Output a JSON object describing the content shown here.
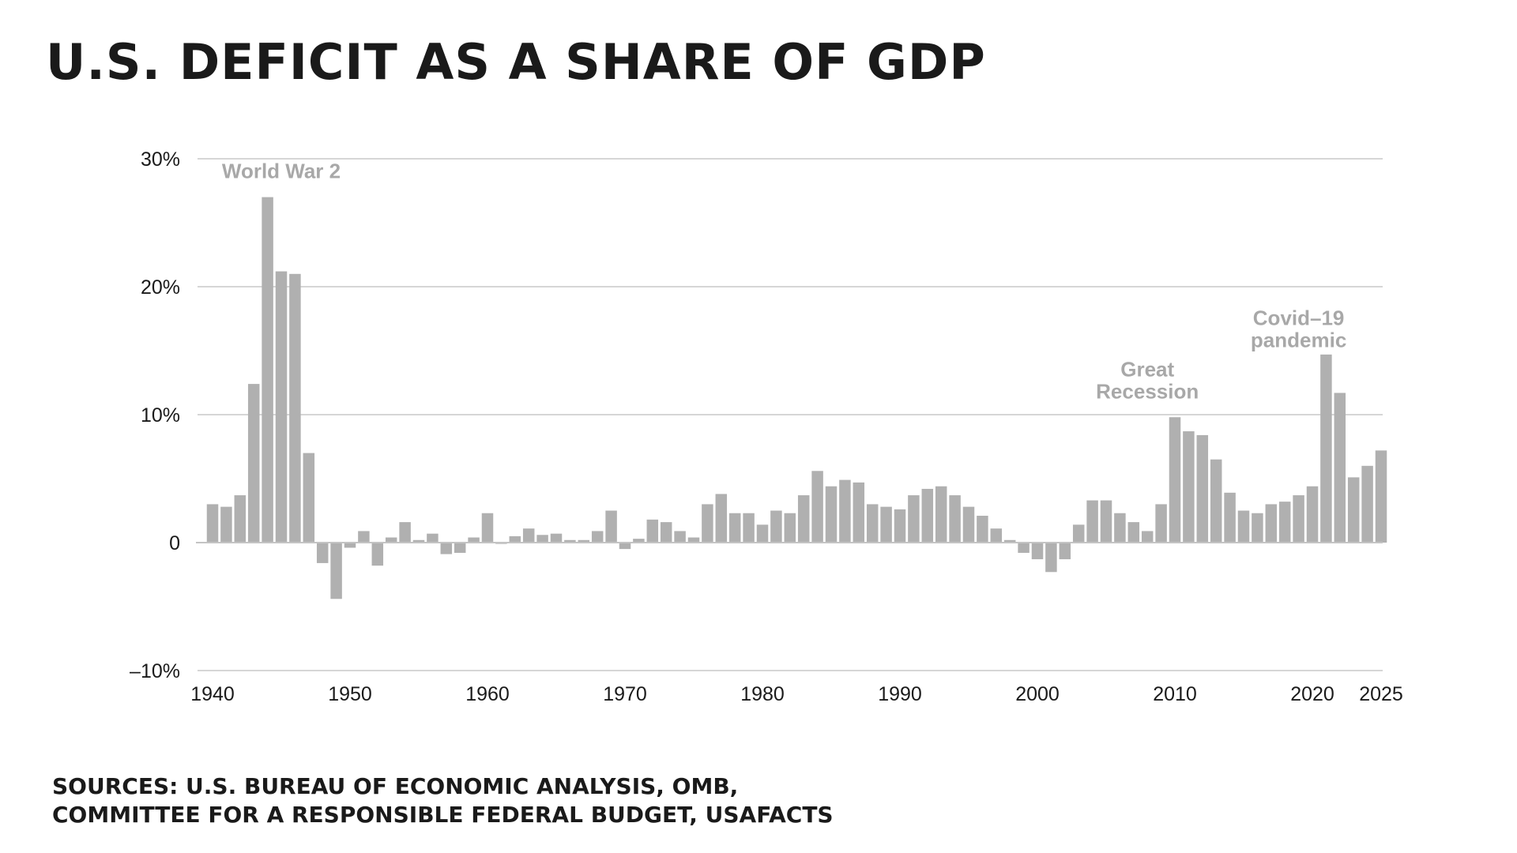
{
  "title": "U.S. DEFICIT AS A SHARE OF GDP",
  "sources": [
    "SOURCES: U.S. BUREAU OF ECONOMIC ANALYSIS, OMB,",
    "COMMITTEE FOR A RESPONSIBLE FEDERAL BUDGET, USAFACTS"
  ],
  "chart_data": {
    "type": "bar",
    "title": "U.S. DEFICIT AS A SHARE OF GDP",
    "xlabel": "",
    "ylabel": "",
    "ylim": [
      -10,
      30
    ],
    "grid": true,
    "bar_color": "#b0b0b0",
    "y_ticks": [
      {
        "value": 30,
        "label": "30%"
      },
      {
        "value": 20,
        "label": "20%"
      },
      {
        "value": 10,
        "label": "10%"
      },
      {
        "value": 0,
        "label": "0"
      },
      {
        "value": -10,
        "label": "–10%"
      }
    ],
    "x_ticks": [
      {
        "value": 1940,
        "label": "1940"
      },
      {
        "value": 1950,
        "label": "1950"
      },
      {
        "value": 1960,
        "label": "1960"
      },
      {
        "value": 1970,
        "label": "1970"
      },
      {
        "value": 1980,
        "label": "1980"
      },
      {
        "value": 1990,
        "label": "1990"
      },
      {
        "value": 2000,
        "label": "2000"
      },
      {
        "value": 2010,
        "label": "2010"
      },
      {
        "value": 2020,
        "label": "2020"
      },
      {
        "value": 2025,
        "label": "2025"
      }
    ],
    "categories": [
      1940,
      1941,
      1942,
      1943,
      1944,
      1945,
      1946,
      1947,
      1948,
      1949,
      1950,
      1951,
      1952,
      1953,
      1954,
      1955,
      1956,
      1957,
      1958,
      1959,
      1960,
      1961,
      1962,
      1963,
      1964,
      1965,
      1966,
      1967,
      1968,
      1969,
      1970,
      1971,
      1972,
      1973,
      1974,
      1975,
      1976,
      1977,
      1978,
      1979,
      1980,
      1981,
      1982,
      1983,
      1984,
      1985,
      1986,
      1987,
      1988,
      1989,
      1990,
      1991,
      1992,
      1993,
      1994,
      1995,
      1996,
      1997,
      1998,
      1999,
      2000,
      2001,
      2002,
      2003,
      2004,
      2005,
      2006,
      2007,
      2008,
      2009,
      2010,
      2011,
      2012,
      2013,
      2014,
      2015,
      2016,
      2017,
      2018,
      2019,
      2020,
      2021,
      2022,
      2023,
      2024,
      2025
    ],
    "values": [
      3.0,
      2.8,
      3.7,
      12.4,
      27.0,
      21.2,
      21.0,
      7.0,
      -1.6,
      -4.4,
      -0.4,
      0.9,
      -1.8,
      0.4,
      1.6,
      0.2,
      0.7,
      -0.9,
      -0.8,
      0.4,
      2.3,
      -0.1,
      0.5,
      1.1,
      0.6,
      0.7,
      0.2,
      0.2,
      0.9,
      2.5,
      -0.5,
      0.3,
      1.8,
      1.6,
      0.9,
      0.4,
      3.0,
      3.8,
      2.3,
      2.3,
      1.4,
      2.5,
      2.3,
      3.7,
      5.6,
      4.4,
      4.9,
      4.7,
      3.0,
      2.8,
      2.6,
      3.7,
      4.2,
      4.4,
      3.7,
      2.8,
      2.1,
      1.1,
      0.2,
      -0.8,
      -1.3,
      -2.3,
      -1.3,
      1.4,
      3.3,
      3.3,
      2.3,
      1.6,
      0.9,
      3.0,
      9.8,
      8.7,
      8.4,
      6.5,
      3.9,
      2.5,
      2.3,
      3.0,
      3.2,
      3.7,
      4.4,
      14.7,
      11.7,
      5.1,
      6.0,
      7.2
    ],
    "annotations": [
      {
        "text": [
          "World War 2"
        ],
        "x": 1945,
        "y": 28.5
      },
      {
        "text": [
          "Great",
          "Recession"
        ],
        "x": 2008,
        "y": 13
      },
      {
        "text": [
          "Covid–19",
          "pandemic"
        ],
        "x": 2019,
        "y": 17
      }
    ]
  }
}
